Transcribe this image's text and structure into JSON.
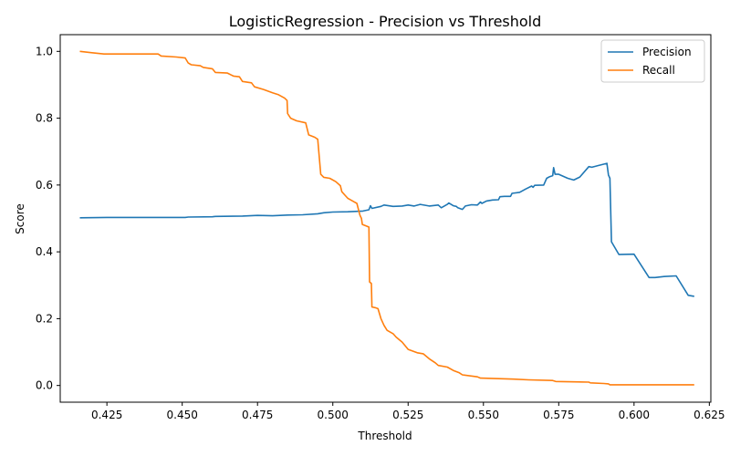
{
  "chart_data": {
    "type": "line",
    "title": "LogisticRegression - Precision vs Threshold",
    "xlabel": "Threshold",
    "ylabel": "Score",
    "xlim": [
      0.4095,
      0.6255
    ],
    "ylim": [
      -0.05,
      1.05
    ],
    "xticks": [
      0.425,
      0.45,
      0.475,
      0.5,
      0.525,
      0.55,
      0.575,
      0.6,
      0.625
    ],
    "xtick_labels": [
      "0.425",
      "0.450",
      "0.475",
      "0.500",
      "0.525",
      "0.550",
      "0.575",
      "0.600",
      "0.625"
    ],
    "yticks": [
      0.0,
      0.2,
      0.4,
      0.6,
      0.8,
      1.0
    ],
    "ytick_labels": [
      "0.0",
      "0.2",
      "0.4",
      "0.6",
      "0.8",
      "1.0"
    ],
    "grid": false,
    "legend": "top-right",
    "series": [
      {
        "name": "Precision",
        "color": "#1f77b4",
        "points": [
          [
            0.416,
            0.502
          ],
          [
            0.425,
            0.503
          ],
          [
            0.44,
            0.503
          ],
          [
            0.451,
            0.503
          ],
          [
            0.452,
            0.504
          ],
          [
            0.46,
            0.505
          ],
          [
            0.461,
            0.506
          ],
          [
            0.47,
            0.507
          ],
          [
            0.475,
            0.509
          ],
          [
            0.48,
            0.508
          ],
          [
            0.485,
            0.51
          ],
          [
            0.49,
            0.511
          ],
          [
            0.495,
            0.514
          ],
          [
            0.497,
            0.517
          ],
          [
            0.5,
            0.519
          ],
          [
            0.505,
            0.52
          ],
          [
            0.51,
            0.522
          ],
          [
            0.512,
            0.526
          ],
          [
            0.5125,
            0.538
          ],
          [
            0.513,
            0.53
          ],
          [
            0.516,
            0.536
          ],
          [
            0.517,
            0.54
          ],
          [
            0.52,
            0.536
          ],
          [
            0.523,
            0.537
          ],
          [
            0.525,
            0.54
          ],
          [
            0.527,
            0.537
          ],
          [
            0.529,
            0.542
          ],
          [
            0.532,
            0.537
          ],
          [
            0.535,
            0.54
          ],
          [
            0.536,
            0.532
          ],
          [
            0.538,
            0.542
          ],
          [
            0.5385,
            0.546
          ],
          [
            0.54,
            0.538
          ],
          [
            0.541,
            0.536
          ],
          [
            0.5415,
            0.532
          ],
          [
            0.543,
            0.527
          ],
          [
            0.544,
            0.537
          ],
          [
            0.546,
            0.541
          ],
          [
            0.548,
            0.54
          ],
          [
            0.549,
            0.549
          ],
          [
            0.5495,
            0.545
          ],
          [
            0.551,
            0.552
          ],
          [
            0.553,
            0.555
          ],
          [
            0.555,
            0.556
          ],
          [
            0.5555,
            0.565
          ],
          [
            0.557,
            0.566
          ],
          [
            0.559,
            0.566
          ],
          [
            0.5595,
            0.575
          ],
          [
            0.562,
            0.578
          ],
          [
            0.564,
            0.588
          ],
          [
            0.566,
            0.597
          ],
          [
            0.5665,
            0.593
          ],
          [
            0.567,
            0.599
          ],
          [
            0.57,
            0.6
          ],
          [
            0.571,
            0.62
          ],
          [
            0.572,
            0.625
          ],
          [
            0.573,
            0.628
          ],
          [
            0.5733,
            0.652
          ],
          [
            0.5738,
            0.632
          ],
          [
            0.575,
            0.632
          ],
          [
            0.578,
            0.62
          ],
          [
            0.58,
            0.615
          ],
          [
            0.582,
            0.624
          ],
          [
            0.585,
            0.655
          ],
          [
            0.586,
            0.653
          ],
          [
            0.588,
            0.658
          ],
          [
            0.591,
            0.665
          ],
          [
            0.5915,
            0.63
          ],
          [
            0.592,
            0.62
          ],
          [
            0.5925,
            0.43
          ],
          [
            0.595,
            0.392
          ],
          [
            0.6,
            0.393
          ],
          [
            0.605,
            0.323
          ],
          [
            0.607,
            0.323
          ],
          [
            0.61,
            0.326
          ],
          [
            0.614,
            0.328
          ],
          [
            0.618,
            0.27
          ],
          [
            0.62,
            0.267
          ]
        ]
      },
      {
        "name": "Recall",
        "color": "#ff7f0e",
        "points": [
          [
            0.416,
            1.0
          ],
          [
            0.42,
            0.996
          ],
          [
            0.424,
            0.992
          ],
          [
            0.442,
            0.992
          ],
          [
            0.443,
            0.986
          ],
          [
            0.448,
            0.983
          ],
          [
            0.451,
            0.98
          ],
          [
            0.452,
            0.965
          ],
          [
            0.453,
            0.96
          ],
          [
            0.456,
            0.957
          ],
          [
            0.457,
            0.952
          ],
          [
            0.46,
            0.948
          ],
          [
            0.461,
            0.937
          ],
          [
            0.465,
            0.935
          ],
          [
            0.467,
            0.926
          ],
          [
            0.469,
            0.924
          ],
          [
            0.47,
            0.91
          ],
          [
            0.473,
            0.906
          ],
          [
            0.474,
            0.894
          ],
          [
            0.477,
            0.886
          ],
          [
            0.48,
            0.876
          ],
          [
            0.482,
            0.87
          ],
          [
            0.484,
            0.86
          ],
          [
            0.4848,
            0.853
          ],
          [
            0.485,
            0.814
          ],
          [
            0.486,
            0.8
          ],
          [
            0.488,
            0.792
          ],
          [
            0.491,
            0.786
          ],
          [
            0.492,
            0.75
          ],
          [
            0.494,
            0.743
          ],
          [
            0.495,
            0.737
          ],
          [
            0.496,
            0.632
          ],
          [
            0.497,
            0.623
          ],
          [
            0.499,
            0.62
          ],
          [
            0.501,
            0.61
          ],
          [
            0.5025,
            0.598
          ],
          [
            0.503,
            0.58
          ],
          [
            0.504,
            0.57
          ],
          [
            0.505,
            0.56
          ],
          [
            0.507,
            0.55
          ],
          [
            0.508,
            0.545
          ],
          [
            0.509,
            0.51
          ],
          [
            0.5095,
            0.5
          ],
          [
            0.5098,
            0.482
          ],
          [
            0.511,
            0.478
          ],
          [
            0.512,
            0.474
          ],
          [
            0.5122,
            0.31
          ],
          [
            0.5128,
            0.305
          ],
          [
            0.513,
            0.235
          ],
          [
            0.514,
            0.233
          ],
          [
            0.515,
            0.23
          ],
          [
            0.516,
            0.2
          ],
          [
            0.517,
            0.18
          ],
          [
            0.518,
            0.165
          ],
          [
            0.52,
            0.155
          ],
          [
            0.521,
            0.145
          ],
          [
            0.523,
            0.13
          ],
          [
            0.525,
            0.108
          ],
          [
            0.528,
            0.098
          ],
          [
            0.53,
            0.095
          ],
          [
            0.532,
            0.08
          ],
          [
            0.534,
            0.068
          ],
          [
            0.535,
            0.06
          ],
          [
            0.538,
            0.055
          ],
          [
            0.54,
            0.045
          ],
          [
            0.542,
            0.038
          ],
          [
            0.543,
            0.032
          ],
          [
            0.548,
            0.026
          ],
          [
            0.549,
            0.022
          ],
          [
            0.56,
            0.019
          ],
          [
            0.565,
            0.017
          ],
          [
            0.573,
            0.015
          ],
          [
            0.574,
            0.012
          ],
          [
            0.585,
            0.01
          ],
          [
            0.5855,
            0.008
          ],
          [
            0.59,
            0.006
          ],
          [
            0.5915,
            0.005
          ],
          [
            0.592,
            0.002
          ],
          [
            0.62,
            0.002
          ]
        ]
      }
    ]
  }
}
